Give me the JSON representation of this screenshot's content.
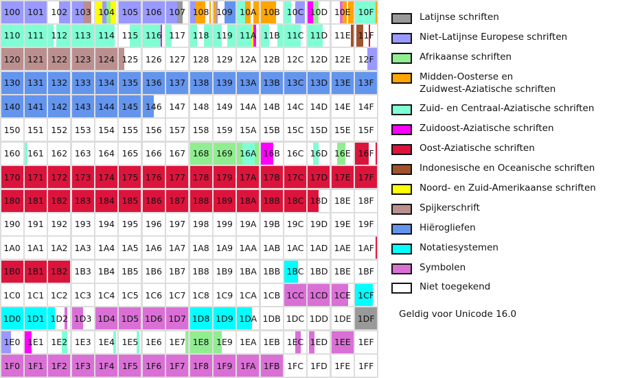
{
  "legend": [
    {
      "key": "L",
      "label": "Latijnse schriften",
      "color": "#999999"
    },
    {
      "key": "N",
      "label": "Niet-Latijnse Europese schriften",
      "color": "#9999ff"
    },
    {
      "key": "A",
      "label": "Afrikaanse schriften",
      "color": "#90ee90"
    },
    {
      "key": "M",
      "label": "Midden-Oosterse en",
      "label2": "Zuidwest-Aziatische schriften",
      "color": "#ffa500"
    },
    {
      "key": "Z",
      "label": "Zuid- en Centraal-Aziatische schriften",
      "color": "#7fffd4"
    },
    {
      "key": "S",
      "label": "Zuidoost-Aziatische schriften",
      "color": "#ff00ff"
    },
    {
      "key": "O",
      "label": "Oost-Aziatische schriften",
      "color": "#dc143c"
    },
    {
      "key": "I",
      "label": "Indonesische en Oceanische schriften",
      "color": "#a0522d"
    },
    {
      "key": "Y",
      "label": "Noord- en Zuid-Amerikaanse schriften",
      "color": "#ffff00"
    },
    {
      "key": "K",
      "label": "Spijkerschrift",
      "color": "#bc8f8f"
    },
    {
      "key": "H",
      "label": "Hiërogliefen",
      "color": "#6495ed"
    },
    {
      "key": "T",
      "label": "Notatiesystemen",
      "color": "#00ffff"
    },
    {
      "key": "X",
      "label": "Symbolen",
      "color": "#da70d6"
    },
    {
      "key": ".",
      "label": "Niet toegekend",
      "color": "#ffffff"
    }
  ],
  "footer": "Geldig voor Unicode 16.0",
  "grid": [
    [
      [
        "100",
        "N"
      ],
      [
        "101",
        "N"
      ],
      [
        "102",
        "........NNNNNNNN"
      ],
      [
        "103",
        "NNNNNNNNKKKKKK.."
      ],
      [
        "104",
        "YYYYYNNNAAAYYYY."
      ],
      [
        "105",
        "N"
      ],
      [
        "106",
        "N"
      ],
      [
        "107",
        "NNNNNNNNLLLL...."
      ],
      [
        "108",
        "NNNNMMMMMMM...M."
      ],
      [
        "109",
        "MMN.....HHHHHHHH"
      ],
      [
        "10A",
        "ZZZZZZMMMM..MMMM"
      ],
      [
        "10B",
        "MMMMMMMMMMM....."
      ],
      [
        "10C",
        "ZZZZZ...NNNNNNN."
      ],
      [
        "10D",
        "SSSSAAAA........"
      ],
      [
        "10E",
        "......XXMMM.MMMM"
      ],
      [
        "10F",
        "ZZZZZZZZZZZZZZZM"
      ]
    ],
    [
      [
        "110",
        "Z"
      ],
      [
        "111",
        "Z"
      ],
      [
        "112",
        "ZZZZ..ZZZZZZZZZZ"
      ],
      [
        "113",
        "Z"
      ],
      [
        "114",
        "ZZZZZZZZZZZZZZ.."
      ],
      [
        "115",
        "........ZZZZZZZZ"
      ],
      [
        "116",
        "ZZZZZZZZZZZZZS.."
      ],
      [
        "117",
        "ZZZZ............"
      ],
      [
        "118",
        "ZZZZZ.....ZZZZZZ"
      ],
      [
        "119",
        "ZZZZZZ....ZZZZZZ"
      ],
      [
        "11A",
        "ZZZZZZZZZZZYSS.."
      ],
      [
        "11B",
        "ZZZZZZ......ZZZZ"
      ],
      [
        "11C",
        "ZZZZZZZZZZZZ...."
      ],
      [
        "11D",
        "ZZZZZZZZZZZ....."
      ],
      [
        "11E",
        "..............II"
      ],
      [
        "11F",
        ".IIIII....O....."
      ]
    ],
    [
      [
        "120",
        "K"
      ],
      [
        "121",
        "K"
      ],
      [
        "122",
        "K"
      ],
      [
        "123",
        "K"
      ],
      [
        "124",
        "K"
      ],
      [
        "125",
        "KKKK............"
      ],
      [
        "126",
        ""
      ],
      [
        "127",
        ""
      ],
      [
        "128",
        ""
      ],
      [
        "129",
        ""
      ],
      [
        "12A",
        ""
      ],
      [
        "12B",
        ""
      ],
      [
        "12C",
        ""
      ],
      [
        "12D",
        ""
      ],
      [
        "12E",
        ""
      ],
      [
        "12F",
        ".........NNNNNNN"
      ]
    ],
    [
      [
        "130",
        "H"
      ],
      [
        "131",
        "H"
      ],
      [
        "132",
        "H"
      ],
      [
        "133",
        "H"
      ],
      [
        "134",
        "H"
      ],
      [
        "135",
        "H"
      ],
      [
        "136",
        "H"
      ],
      [
        "137",
        "H"
      ],
      [
        "138",
        "H"
      ],
      [
        "139",
        "H"
      ],
      [
        "13A",
        "H"
      ],
      [
        "13B",
        "H"
      ],
      [
        "13C",
        "H"
      ],
      [
        "13D",
        "H"
      ],
      [
        "13E",
        "H"
      ],
      [
        "13F",
        "H"
      ]
    ],
    [
      [
        "140",
        "H"
      ],
      [
        "141",
        "H"
      ],
      [
        "142",
        "H"
      ],
      [
        "143",
        "H"
      ],
      [
        "144",
        "H"
      ],
      [
        "145",
        "H"
      ],
      [
        "146",
        "HHHHHHHH........"
      ],
      [
        "147",
        ""
      ],
      [
        "148",
        ""
      ],
      [
        "149",
        ""
      ],
      [
        "14A",
        ""
      ],
      [
        "14B",
        ""
      ],
      [
        "14C",
        ""
      ],
      [
        "14D",
        ""
      ],
      [
        "14E",
        ""
      ],
      [
        "14F",
        ""
      ]
    ],
    [
      [
        "150",
        ""
      ],
      [
        "151",
        ""
      ],
      [
        "152",
        ""
      ],
      [
        "153",
        ""
      ],
      [
        "154",
        ""
      ],
      [
        "155",
        ""
      ],
      [
        "156",
        ""
      ],
      [
        "157",
        ""
      ],
      [
        "158",
        ""
      ],
      [
        "159",
        ""
      ],
      [
        "15A",
        ""
      ],
      [
        "15B",
        ""
      ],
      [
        "15C",
        ""
      ],
      [
        "15D",
        ""
      ],
      [
        "15E",
        ""
      ],
      [
        "15F",
        ""
      ]
    ],
    [
      [
        "160",
        ""
      ],
      [
        "161",
        "ZZ.............."
      ],
      [
        "162",
        ""
      ],
      [
        "163",
        ""
      ],
      [
        "164",
        ""
      ],
      [
        "165",
        ""
      ],
      [
        "166",
        ""
      ],
      [
        "167",
        ""
      ],
      [
        "168",
        "A"
      ],
      [
        "169",
        "A"
      ],
      [
        "16A",
        "AAAAZZZZZZZZZAAA"
      ],
      [
        "16B",
        "SSSSSSSSS......."
      ],
      [
        "16C",
        ""
      ],
      [
        "16D",
        "....ZZZZ........"
      ],
      [
        "16E",
        "....AAAAAA......"
      ],
      [
        "16F",
        "OOOOOOOOOO.....O"
      ]
    ],
    [
      [
        "170",
        "O"
      ],
      [
        "171",
        "O"
      ],
      [
        "172",
        "O"
      ],
      [
        "173",
        "O"
      ],
      [
        "174",
        "O"
      ],
      [
        "175",
        "O"
      ],
      [
        "176",
        "O"
      ],
      [
        "177",
        "O"
      ],
      [
        "178",
        "O"
      ],
      [
        "179",
        "O"
      ],
      [
        "17A",
        "O"
      ],
      [
        "17B",
        "O"
      ],
      [
        "17C",
        "O"
      ],
      [
        "17D",
        "O"
      ],
      [
        "17E",
        "O"
      ],
      [
        "17F",
        "O"
      ]
    ],
    [
      [
        "180",
        "O"
      ],
      [
        "181",
        "O"
      ],
      [
        "182",
        "O"
      ],
      [
        "183",
        "O"
      ],
      [
        "184",
        "O"
      ],
      [
        "185",
        "O"
      ],
      [
        "186",
        "O"
      ],
      [
        "187",
        "O"
      ],
      [
        "188",
        "O"
      ],
      [
        "189",
        "O"
      ],
      [
        "18A",
        "O"
      ],
      [
        "18B",
        "O"
      ],
      [
        "18C",
        "O"
      ],
      [
        "18D",
        "OOOOOOOO........"
      ],
      [
        "18E",
        ""
      ],
      [
        "18F",
        ""
      ]
    ],
    [
      [
        "190",
        ""
      ],
      [
        "191",
        ""
      ],
      [
        "192",
        ""
      ],
      [
        "193",
        ""
      ],
      [
        "194",
        ""
      ],
      [
        "195",
        ""
      ],
      [
        "196",
        ""
      ],
      [
        "197",
        ""
      ],
      [
        "198",
        ""
      ],
      [
        "199",
        ""
      ],
      [
        "19A",
        ""
      ],
      [
        "19B",
        ""
      ],
      [
        "19C",
        ""
      ],
      [
        "19D",
        ""
      ],
      [
        "19E",
        ""
      ],
      [
        "19F",
        ""
      ]
    ],
    [
      [
        "1A0",
        ""
      ],
      [
        "1A1",
        ""
      ],
      [
        "1A2",
        ""
      ],
      [
        "1A3",
        ""
      ],
      [
        "1A4",
        ""
      ],
      [
        "1A5",
        ""
      ],
      [
        "1A6",
        ""
      ],
      [
        "1A7",
        ""
      ],
      [
        "1A8",
        ""
      ],
      [
        "1A9",
        ""
      ],
      [
        "1AA",
        ""
      ],
      [
        "1AB",
        ""
      ],
      [
        "1AC",
        ""
      ],
      [
        "1AD",
        ""
      ],
      [
        "1AE",
        ""
      ],
      [
        "1AF",
        "...............O"
      ]
    ],
    [
      [
        "1B0",
        "O"
      ],
      [
        "1B1",
        "O"
      ],
      [
        "1B2",
        "O"
      ],
      [
        "1B3",
        ""
      ],
      [
        "1B4",
        ""
      ],
      [
        "1B5",
        ""
      ],
      [
        "1B6",
        ""
      ],
      [
        "1B7",
        ""
      ],
      [
        "1B8",
        ""
      ],
      [
        "1B9",
        ""
      ],
      [
        "1BA",
        ""
      ],
      [
        "1BB",
        ""
      ],
      [
        "1BC",
        "TTTTTTTTTT......"
      ],
      [
        "1BD",
        ""
      ],
      [
        "1BE",
        ""
      ],
      [
        "1BF",
        ""
      ]
    ],
    [
      [
        "1C0",
        ""
      ],
      [
        "1C1",
        ""
      ],
      [
        "1C2",
        ""
      ],
      [
        "1C3",
        ""
      ],
      [
        "1C4",
        ""
      ],
      [
        "1C5",
        ""
      ],
      [
        "1C6",
        ""
      ],
      [
        "1C7",
        ""
      ],
      [
        "1C8",
        ""
      ],
      [
        "1C9",
        ""
      ],
      [
        "1CA",
        ""
      ],
      [
        "1CB",
        ""
      ],
      [
        "1CC",
        "X"
      ],
      [
        "1CD",
        "X"
      ],
      [
        "1CE",
        "XXXXXXXXXXXX...."
      ],
      [
        "1CF",
        "TTTTTTTTTTTTT..."
      ]
    ],
    [
      [
        "1D0",
        "T"
      ],
      [
        "1D1",
        "T"
      ],
      [
        "1D2",
        "TTTTT.......XX.."
      ],
      [
        "1D3",
        "XXXXXXXX........"
      ],
      [
        "1D4",
        "X"
      ],
      [
        "1D5",
        "X"
      ],
      [
        "1D6",
        "X"
      ],
      [
        "1D7",
        "X"
      ],
      [
        "1D8",
        "T"
      ],
      [
        "1D9",
        "T"
      ],
      [
        "1DA",
        "TTTTTTTTTTT....."
      ],
      [
        "1DB",
        ""
      ],
      [
        "1DC",
        ""
      ],
      [
        "1DD",
        ""
      ],
      [
        "1DE",
        ""
      ],
      [
        "1DF",
        "L"
      ]
    ],
    [
      [
        "1E0",
        "NNNNNNN........."
      ],
      [
        "1E1",
        "SSSSS..........."
      ],
      [
        "1E2",
        "..........ZZZZ.."
      ],
      [
        "1E3",
        ""
      ],
      [
        "1E4",
        ".............ZZ."
      ],
      [
        "1E5",
        ".............ZZ."
      ],
      [
        "1E6",
        ""
      ],
      [
        "1E7",
        "..............AA"
      ],
      [
        "1E8",
        "A"
      ],
      [
        "1E9",
        "AAAAAA.........."
      ],
      [
        "1EA",
        ""
      ],
      [
        "1EB",
        ""
      ],
      [
        "1EC",
        "........XXXX...."
      ],
      [
        "1ED",
        ".XXXX..........."
      ],
      [
        "1EE",
        "X"
      ],
      [
        "1EF",
        ""
      ]
    ],
    [
      [
        "1F0",
        "X"
      ],
      [
        "1F1",
        "X"
      ],
      [
        "1F2",
        "X"
      ],
      [
        "1F3",
        "X"
      ],
      [
        "1F4",
        "X"
      ],
      [
        "1F5",
        "X"
      ],
      [
        "1F6",
        "X"
      ],
      [
        "1F7",
        "X"
      ],
      [
        "1F8",
        "X"
      ],
      [
        "1F9",
        "X"
      ],
      [
        "1FA",
        "X"
      ],
      [
        "1FB",
        "X"
      ],
      [
        "1FC",
        ""
      ],
      [
        "1FD",
        ""
      ],
      [
        "1FE",
        ""
      ],
      [
        "1FF",
        ""
      ]
    ]
  ]
}
